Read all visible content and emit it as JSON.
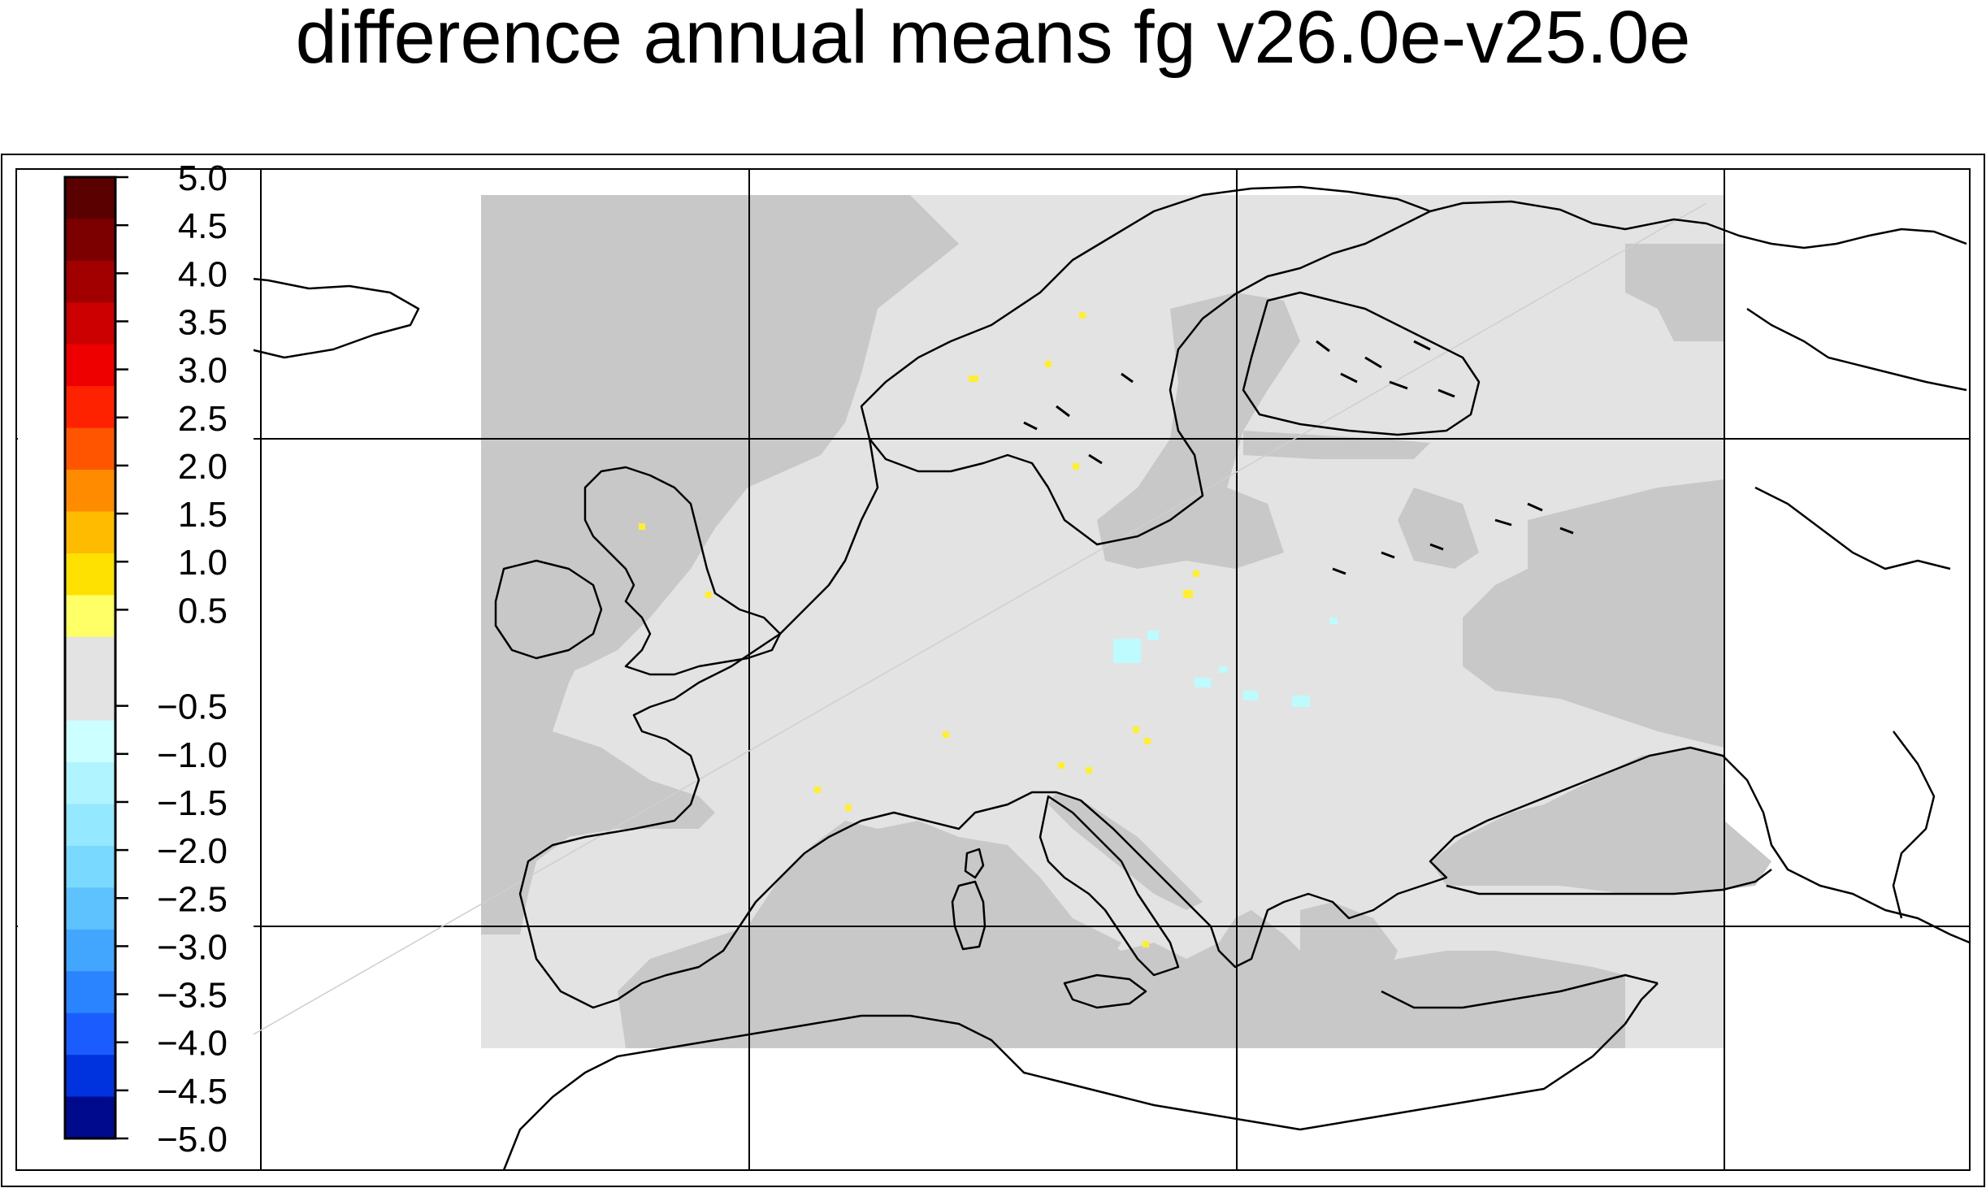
{
  "title": "difference annual means fg v26.0e-v25.0e",
  "colorbar": {
    "top_label": "5.0",
    "levels": [
      "4.5",
      "4.0",
      "3.5",
      "3.0",
      "2.5",
      "2.0",
      "1.5",
      "1.0",
      "0.5",
      "",
      "−0.5",
      "−1.0",
      "−1.5",
      "−2.0",
      "−2.5",
      "−3.0",
      "−3.5",
      "−4.0",
      "−4.5"
    ],
    "bottom_label": "−5.0",
    "colors": [
      "#5a0000",
      "#7d0000",
      "#a20000",
      "#cc0000",
      "#ee0000",
      "#ff2200",
      "#ff5500",
      "#ff8c00",
      "#ffbb00",
      "#ffe100",
      "#ffff66",
      "#e3e3e3",
      "#e3e3e3",
      "#ccffff",
      "#b0f4ff",
      "#94e8ff",
      "#7ad9ff",
      "#5ec2ff",
      "#42a6ff",
      "#2a84ff",
      "#1a5cff",
      "#0033dd",
      "#000a8c"
    ]
  },
  "map": {
    "domain_fill": "#e3e3e3",
    "water_fill": "#c8c8c8",
    "positive_speck_color": "#ffee33",
    "negative_speck_color": "#bdfbff"
  }
}
